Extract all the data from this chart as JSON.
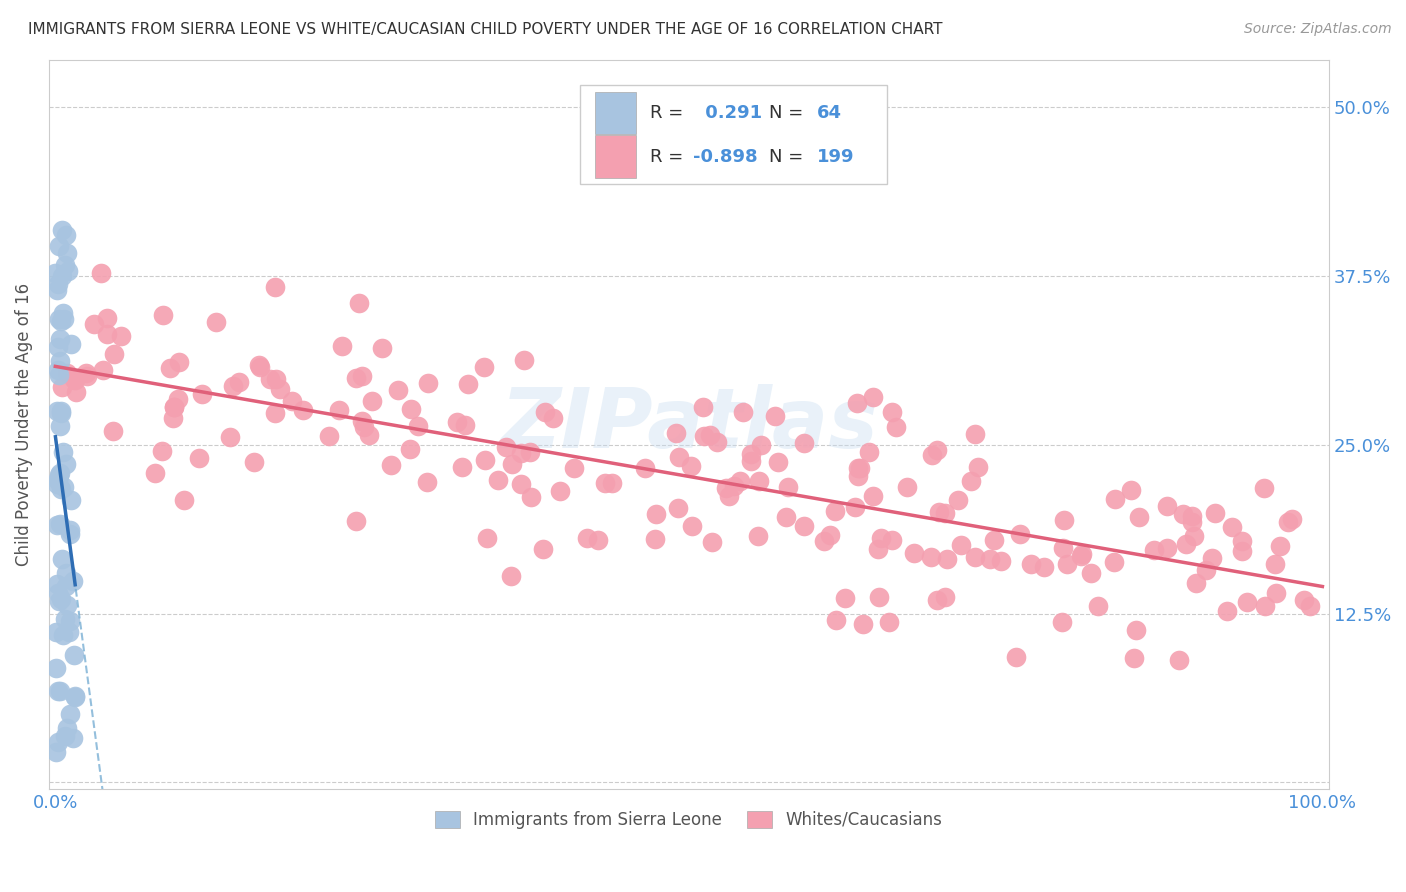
{
  "title": "IMMIGRANTS FROM SIERRA LEONE VS WHITE/CAUCASIAN CHILD POVERTY UNDER THE AGE OF 16 CORRELATION CHART",
  "source": "Source: ZipAtlas.com",
  "ylabel": "Child Poverty Under the Age of 16",
  "r_blue": 0.291,
  "n_blue": 64,
  "r_pink": -0.898,
  "n_pink": 199,
  "yticks": [
    0.0,
    0.125,
    0.25,
    0.375,
    0.5
  ],
  "ytick_labels": [
    "",
    "12.5%",
    "25.0%",
    "37.5%",
    "50.0%"
  ],
  "xtick_labels": [
    "0.0%",
    "",
    "",
    "",
    "",
    "",
    "",
    "",
    "",
    "",
    "100.0%"
  ],
  "blue_color": "#a8c4e0",
  "pink_color": "#f4a0b0",
  "blue_line_color": "#2e6db4",
  "pink_line_color": "#e0607a",
  "blue_dashed_color": "#7aafd4",
  "watermark": "ZIPatlas",
  "legend_blue_label": "Immigrants from Sierra Leone",
  "legend_pink_label": "Whites/Caucasians",
  "background_color": "#ffffff",
  "grid_color": "#cccccc",
  "title_color": "#333333",
  "axis_label_color": "#555555",
  "tick_color": "#4a90d9",
  "seed": 42,
  "pink_intercept": 0.305,
  "pink_slope": -0.165,
  "pink_noise": 0.038
}
